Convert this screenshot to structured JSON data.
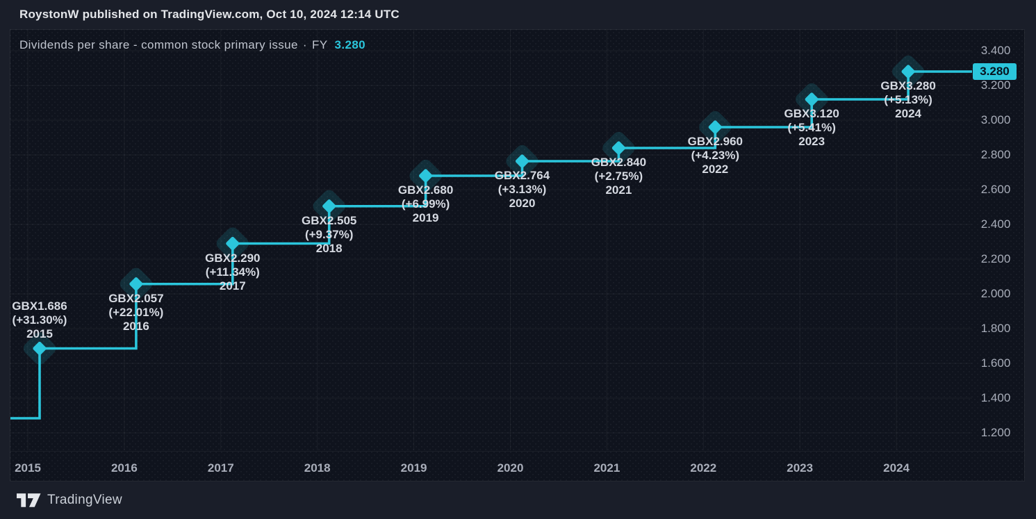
{
  "header": {
    "attribution": "RoystonW published on TradingView.com, Oct 10, 2024 12:14 UTC"
  },
  "chart": {
    "title": "Dividends per share - common stock primary issue",
    "separator": "·",
    "period_label": "FY",
    "current_value": "3.280",
    "price_badge": "3.280"
  },
  "chart_data": {
    "type": "line",
    "line_style": "step-after",
    "title": "Dividends per share - common stock primary issue",
    "unit": "GBX",
    "x": [
      "2015",
      "2016",
      "2017",
      "2018",
      "2019",
      "2020",
      "2021",
      "2022",
      "2023",
      "2024"
    ],
    "values": [
      1.686,
      2.057,
      2.29,
      2.505,
      2.68,
      2.764,
      2.84,
      2.96,
      3.12,
      3.28
    ],
    "lead_in_value": 1.284,
    "point_labels": [
      {
        "value": "GBX1.686",
        "pct": "(+31.30%)",
        "year": "2015",
        "position": "above"
      },
      {
        "value": "GBX2.057",
        "pct": "(+22.01%)",
        "year": "2016",
        "position": "below"
      },
      {
        "value": "GBX2.290",
        "pct": "(+11.34%)",
        "year": "2017",
        "position": "below"
      },
      {
        "value": "GBX2.505",
        "pct": "(+9.37%)",
        "year": "2018",
        "position": "below"
      },
      {
        "value": "GBX2.680",
        "pct": "(+6.99%)",
        "year": "2019",
        "position": "below"
      },
      {
        "value": "GBX2.764",
        "pct": "(+3.13%)",
        "year": "2020",
        "position": "below"
      },
      {
        "value": "GBX2.840",
        "pct": "(+2.75%)",
        "year": "2021",
        "position": "below"
      },
      {
        "value": "GBX2.960",
        "pct": "(+4.23%)",
        "year": "2022",
        "position": "below"
      },
      {
        "value": "GBX3.120",
        "pct": "(+5.41%)",
        "year": "2023",
        "position": "below"
      },
      {
        "value": "GBX3.280",
        "pct": "(+5.13%)",
        "year": "2024",
        "position": "below"
      }
    ],
    "y_ticks": [
      "3.400",
      "3.200",
      "3.000",
      "2.800",
      "2.600",
      "2.400",
      "2.200",
      "2.000",
      "1.800",
      "1.600",
      "1.400",
      "1.200"
    ],
    "ylim": [
      1.1,
      3.52
    ],
    "last_price_label": "3.280",
    "grid": true,
    "legend": "none"
  },
  "colors": {
    "accent": "#2bc6dc",
    "marker_glow": "rgba(43,198,220,0.15)",
    "badge_background": "#2bc6dc",
    "badge_text": "#07131e",
    "plot_background": "#0f131d",
    "page_background": "#1a1e29",
    "grid_line": "rgba(255,255,255,0.05)",
    "label_text": "#d6dae2",
    "axis_text": "#a9aeba",
    "title_text": "#c0c5cf",
    "header_text": "#e4e6ea"
  },
  "footer": {
    "brand": "TradingView"
  }
}
